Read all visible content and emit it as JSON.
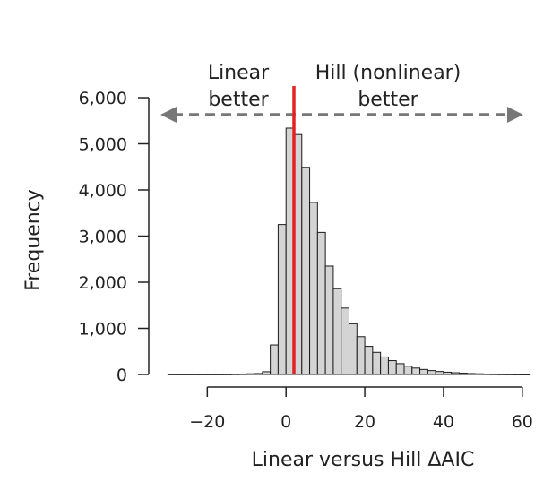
{
  "chart_data": {
    "type": "histogram",
    "xlabel": "Linear versus Hill ΔAIC",
    "ylabel": "Frequency",
    "xlim": [
      -31,
      63
    ],
    "ylim": [
      0,
      6000
    ],
    "x_ticks": [
      -20,
      0,
      20,
      40,
      60
    ],
    "x_tick_labels": [
      "−20",
      "0",
      "20",
      "40",
      "60"
    ],
    "y_ticks": [
      0,
      1000,
      2000,
      3000,
      4000,
      5000,
      6000
    ],
    "y_tick_labels": [
      "0",
      "1,000",
      "2,000",
      "3,000",
      "4,000",
      "5,000",
      "6,000"
    ],
    "bin_width": 2,
    "bin_starts": [
      -30,
      -28,
      -26,
      -24,
      -22,
      -20,
      -18,
      -16,
      -14,
      -12,
      -10,
      -8,
      -6,
      -4,
      -2,
      0,
      2,
      4,
      6,
      8,
      10,
      12,
      14,
      16,
      18,
      20,
      22,
      24,
      26,
      28,
      30,
      32,
      34,
      36,
      38,
      40,
      42,
      44,
      46,
      48,
      50,
      52,
      54,
      56,
      58,
      60
    ],
    "counts": [
      5,
      5,
      5,
      5,
      5,
      5,
      5,
      5,
      8,
      10,
      15,
      20,
      60,
      640,
      3250,
      5340,
      5200,
      4490,
      3730,
      3080,
      2350,
      1860,
      1440,
      1100,
      820,
      610,
      480,
      380,
      300,
      235,
      180,
      140,
      110,
      85,
      65,
      50,
      38,
      28,
      20,
      15,
      10,
      8,
      6,
      5,
      4,
      3
    ],
    "reference_line": {
      "x": 2,
      "color": "#e02424"
    },
    "bar_fill": "#d4d4d4",
    "bar_stroke": "#1a1a1a",
    "arrow_color": "#777777",
    "annotations": {
      "left": [
        "Linear",
        "better"
      ],
      "right": [
        "Hill (nonlinear)",
        "better"
      ]
    },
    "grid": false
  }
}
